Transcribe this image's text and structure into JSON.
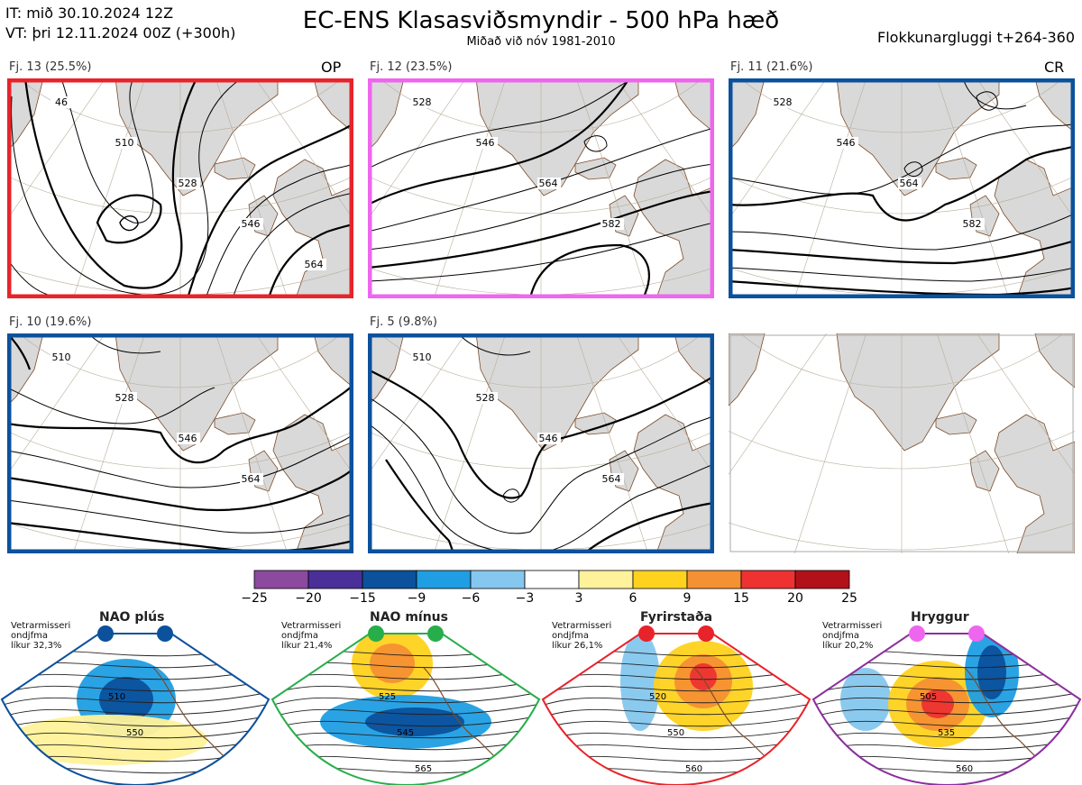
{
  "header": {
    "it_line": "IT: mið 30.10.2024 12Z",
    "vt_line": "VT: þri 12.11.2024 00Z  (+300h)",
    "title": "EC-ENS Klasasviðsmyndir - 500 hPa hæð",
    "subtitle": "Miðað við nóv 1981-2010",
    "window": "Flokkunargluggi t+264-360"
  },
  "colors": {
    "land": "#d9d9d9",
    "coast": "#7a4b2a",
    "grid": "#b8ae9a",
    "contour": "#000000",
    "frame_red": "#e8232a",
    "frame_pink": "#ee66ee",
    "frame_blue": "#0b519c",
    "frame_grey": "#aaaaaa"
  },
  "panels": [
    {
      "label": "Fj. 13 (25.5%)",
      "tag": "OP",
      "frame": "red",
      "contour_labels": [
        "46",
        "510",
        "528",
        "546",
        "564"
      ]
    },
    {
      "label": "Fj. 12 (23.5%)",
      "tag": "",
      "frame": "pink",
      "contour_labels": [
        "528",
        "546",
        "564",
        "582"
      ]
    },
    {
      "label": "Fj. 11 (21.6%)",
      "tag": "CR",
      "frame": "blue",
      "contour_labels": [
        "528",
        "546",
        "564",
        "582"
      ]
    },
    {
      "label": "Fj. 10 (19.6%)",
      "tag": "",
      "frame": "blue",
      "contour_labels": [
        "510",
        "528",
        "546",
        "564"
      ]
    },
    {
      "label": "Fj. 5 (9.8%)",
      "tag": "",
      "frame": "blue",
      "contour_labels": [
        "510",
        "528",
        "546",
        "564"
      ]
    },
    {
      "label": "",
      "tag": "",
      "frame": "grey",
      "contour_labels": []
    }
  ],
  "colorbar": {
    "ticks": [
      "−25",
      "−20",
      "−15",
      "−9",
      "−6",
      "−3",
      "3",
      "6",
      "9",
      "15",
      "20",
      "25"
    ],
    "colors": [
      "#8c4a9e",
      "#4a2f98",
      "#0b519c",
      "#1f9ee3",
      "#85c7ee",
      "#ffffff",
      "#fff29a",
      "#ffd21e",
      "#f59033",
      "#ee3232",
      "#b3111a"
    ]
  },
  "regimes": [
    {
      "name": "NAO plús",
      "note": "Vetrarmisseri\nondjfma\nlíkur 32,3%",
      "dot_color": "#0b519c",
      "frame_color": "#0b519c",
      "labels": [
        "510",
        "550"
      ]
    },
    {
      "name": "NAO mínus",
      "note": "Vetrarmisseri\nondjfma\nlíkur 21,4%",
      "dot_color": "#27ae4a",
      "frame_color": "#27ae4a",
      "labels": [
        "525",
        "545",
        "565"
      ]
    },
    {
      "name": "Fyrirstaða",
      "note": "Vetrarmisseri\nondjfma\nlíkur 26,1%",
      "dot_color": "#e8232a",
      "frame_color": "#e8232a",
      "labels": [
        "520",
        "550",
        "560"
      ]
    },
    {
      "name": "Hryggur",
      "note": "Vetrarmisseri\nondjfma\nlíkur 20,2%",
      "dot_color": "#ee66ee",
      "frame_color": "#8b2f9e",
      "labels": [
        "505",
        "535",
        "560"
      ]
    }
  ]
}
